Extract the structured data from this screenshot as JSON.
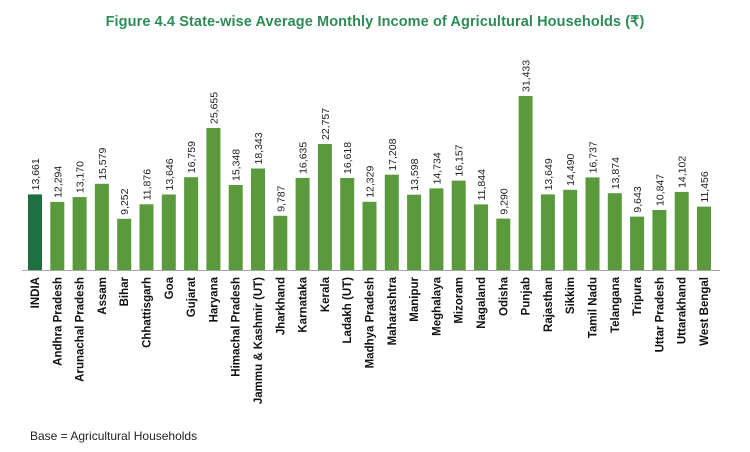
{
  "chart_data": {
    "type": "bar",
    "title": "Figure 4.4 State-wise Average Monthly Income of Agricultural Households (₹)",
    "categories": [
      "INDIA",
      "Andhra Pradesh",
      "Arunachal Pradesh",
      "Assam",
      "Bihar",
      "Chhattisgarh",
      "Goa",
      "Gujarat",
      "Haryana",
      "Himachal Pradesh",
      "Jammu & Kashmir (UT)",
      "Jharkhand",
      "Karnataka",
      "Kerala",
      "Ladakh (UT)",
      "Madhya Pradesh",
      "Maharashtra",
      "Manipur",
      "Meghalaya",
      "Mizoram",
      "Nagaland",
      "Odisha",
      "Punjab",
      "Rajasthan",
      "Sikkim",
      "Tamil Nadu",
      "Telangana",
      "Tripura",
      "Uttar Pradesh",
      "Uttarakhand",
      "West Bengal"
    ],
    "values": [
      13661,
      12294,
      13170,
      15579,
      9252,
      11876,
      13646,
      16759,
      25655,
      15348,
      18343,
      9787,
      16635,
      22757,
      16618,
      12329,
      17208,
      13598,
      14734,
      16157,
      11844,
      9290,
      31433,
      13649,
      14490,
      16737,
      13874,
      9643,
      10847,
      14102,
      11456
    ],
    "value_labels": [
      "13,661",
      "12,294",
      "13,170",
      "15,579",
      "9,252",
      "11,876",
      "13,646",
      "16,759",
      "25,655",
      "15,348",
      "18,343",
      "9,787",
      "16,635",
      "22,757",
      "16,618",
      "12,329",
      "17,208",
      "13,598",
      "14,734",
      "16,157",
      "11,844",
      "9,290",
      "31,433",
      "13,649",
      "14,490",
      "16,737",
      "13,874",
      "9,643",
      "10,847",
      "14,102",
      "11,456"
    ],
    "highlight_category": "INDIA",
    "colors": {
      "bar": "#5a9a3c",
      "highlight": "#1f7040",
      "axis": "#a6a6a6",
      "title": "#2e8b57"
    },
    "xlabel": "",
    "ylabel": "",
    "ylim": [
      0,
      31433
    ],
    "grid": false,
    "legend": "none"
  },
  "footer": {
    "note": "Base = Agricultural Households"
  }
}
